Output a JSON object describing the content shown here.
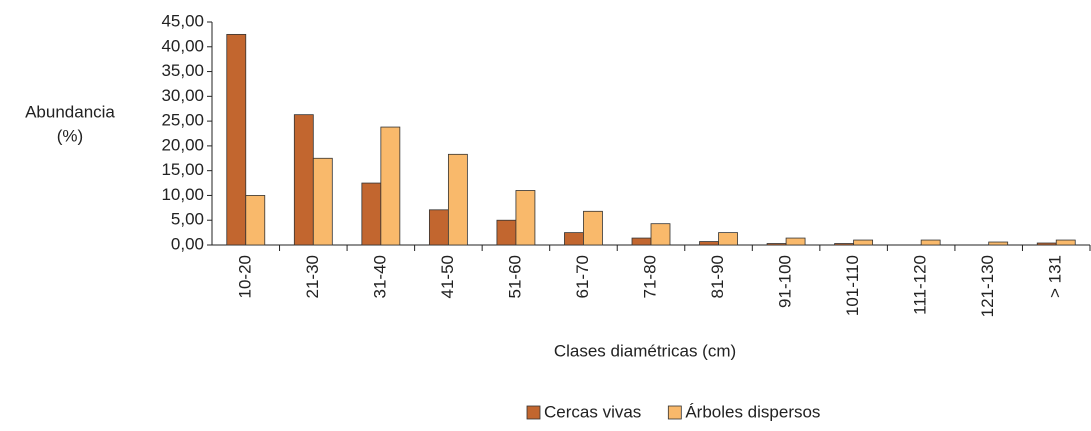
{
  "chart_data": {
    "type": "bar",
    "ylabel": [
      "Abundancia",
      "(%)"
    ],
    "xlabel": "Clases diamétricas (cm)",
    "categories": [
      "10-20",
      "21-30",
      "31-40",
      "41-50",
      "51-60",
      "61-70",
      "71-80",
      "81-90",
      "91-100",
      "101-110",
      "111-120",
      "121-130",
      "> 131"
    ],
    "series": [
      {
        "name": "Cercas vivas",
        "color": "#c2662f",
        "values": [
          42.5,
          26.3,
          12.5,
          7.1,
          5.0,
          2.5,
          1.4,
          0.7,
          0.3,
          0.3,
          0,
          0,
          0.4
        ]
      },
      {
        "name": "Árboles dispersos",
        "color": "#f9b96b",
        "values": [
          10.0,
          17.5,
          23.8,
          18.3,
          11.0,
          6.8,
          4.3,
          2.5,
          1.4,
          1.0,
          1.0,
          0.6,
          1.0
        ]
      }
    ],
    "ylim": [
      0,
      45
    ],
    "yticks": [
      {
        "value": 0,
        "label": "0,00"
      },
      {
        "value": 5,
        "label": "5,00"
      },
      {
        "value": 10,
        "label": "10,00"
      },
      {
        "value": 15,
        "label": "15,00"
      },
      {
        "value": 20,
        "label": "20,00"
      },
      {
        "value": 25,
        "label": "25,00"
      },
      {
        "value": 30,
        "label": "30,00"
      },
      {
        "value": 35,
        "label": "35,00"
      },
      {
        "value": 40,
        "label": "40,00"
      },
      {
        "value": 45,
        "label": "45,00"
      }
    ],
    "legend": "bottom"
  }
}
